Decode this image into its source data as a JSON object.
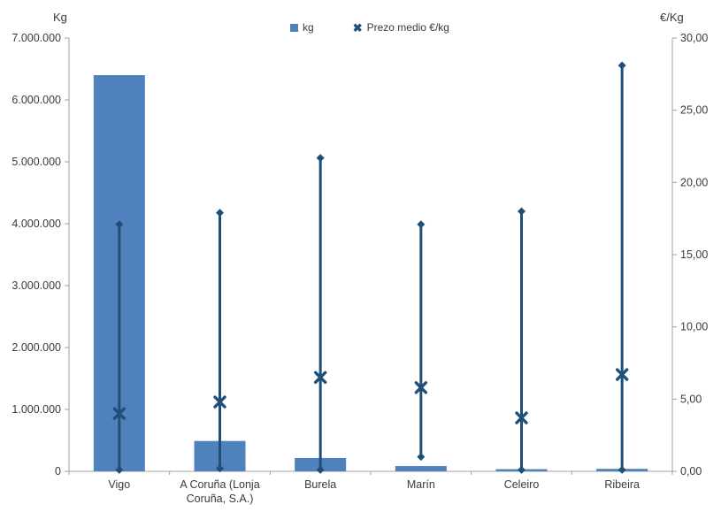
{
  "chart_data": {
    "type": "bar",
    "subtype": "combo-bar-with-highlow-range-and-mean-markers",
    "title": "",
    "categories": [
      "Vigo",
      "A Coruña (Lonja Coruña, S.A.)",
      "Burela",
      "Marín",
      "Celeiro",
      "Ribeira"
    ],
    "category_label_lines": [
      [
        "Vigo"
      ],
      [
        "A Coruña (Lonja",
        "Coruña, S.A.)"
      ],
      [
        "Burela"
      ],
      [
        "Marín"
      ],
      [
        "Celeiro"
      ],
      [
        "Ribeira"
      ]
    ],
    "series": [
      {
        "name": "kg",
        "type": "bar",
        "axis": "left",
        "values": [
          6400000,
          490000,
          215000,
          85000,
          35000,
          40000
        ]
      },
      {
        "name": "Prezo medio €/kg",
        "type": "range-with-mean",
        "axis": "right",
        "mean": [
          4.0,
          4.8,
          6.5,
          5.8,
          3.7,
          6.7
        ],
        "min": [
          0.1,
          0.2,
          0.1,
          1.0,
          0.1,
          0.1
        ],
        "max": [
          17.1,
          17.9,
          21.7,
          17.1,
          18.0,
          28.1
        ]
      }
    ],
    "left_axis": {
      "title": "Kg",
      "min": 0,
      "max": 7000000,
      "tick_labels": [
        "0",
        "1.000.000",
        "2.000.000",
        "3.000.000",
        "4.000.000",
        "5.000.000",
        "6.000.000",
        "7.000.000"
      ]
    },
    "right_axis": {
      "title": "€/Kg",
      "min": 0,
      "max": 30,
      "tick_labels": [
        "0,00",
        "5,00",
        "10,00",
        "15,00",
        "20,00",
        "25,00",
        "30,00"
      ]
    },
    "legend": {
      "position": "top",
      "items": [
        {
          "label": "kg",
          "marker": "square"
        },
        {
          "label": "Prezo medio €/kg",
          "marker": "x"
        }
      ]
    },
    "grid": "off",
    "colors": {
      "bar": "#4F81BD",
      "line": "#1F4E79",
      "axis": "#A0A0A0",
      "text": "#3A3A3A"
    }
  }
}
